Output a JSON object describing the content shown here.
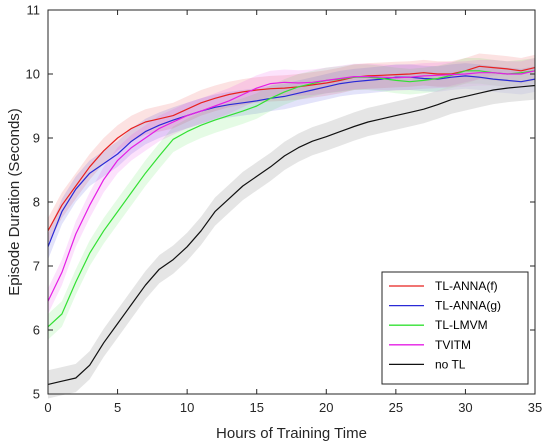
{
  "chart_data": {
    "type": "line",
    "xlabel": "Hours of Training Time",
    "ylabel": "Episode Duration (Seconds)",
    "xlim": [
      0,
      35
    ],
    "ylim": [
      5,
      11
    ],
    "xticks": [
      0,
      5,
      10,
      15,
      20,
      25,
      30,
      35
    ],
    "yticks": [
      5,
      6,
      7,
      8,
      9,
      10,
      11
    ],
    "grid": false,
    "legend_position": "bottom-right",
    "x": [
      0,
      1,
      2,
      3,
      4,
      5,
      6,
      7,
      8,
      9,
      10,
      11,
      12,
      13,
      14,
      15,
      16,
      17,
      18,
      19,
      20,
      21,
      22,
      23,
      24,
      25,
      26,
      27,
      28,
      29,
      30,
      31,
      32,
      33,
      34,
      35
    ],
    "series": [
      {
        "name": "TL-ANNA(f)",
        "color": "#e8211f",
        "band": 0.2,
        "values": [
          7.55,
          7.95,
          8.25,
          8.55,
          8.8,
          9.0,
          9.15,
          9.25,
          9.3,
          9.35,
          9.45,
          9.55,
          9.62,
          9.68,
          9.72,
          9.75,
          9.77,
          9.78,
          9.8,
          9.83,
          9.86,
          9.9,
          9.95,
          9.97,
          9.98,
          9.99,
          10.0,
          10.02,
          10.0,
          10.0,
          10.05,
          10.12,
          10.1,
          10.08,
          10.05,
          10.1
        ]
      },
      {
        "name": "TL-ANNA(g)",
        "color": "#2a2ad6",
        "band": 0.2,
        "values": [
          7.3,
          7.85,
          8.2,
          8.45,
          8.6,
          8.75,
          8.95,
          9.1,
          9.2,
          9.28,
          9.35,
          9.42,
          9.48,
          9.52,
          9.55,
          9.58,
          9.62,
          9.65,
          9.7,
          9.75,
          9.8,
          9.85,
          9.88,
          9.9,
          9.92,
          9.95,
          9.95,
          9.93,
          9.92,
          9.95,
          9.97,
          9.95,
          9.92,
          9.9,
          9.88,
          9.92
        ]
      },
      {
        "name": "TL-LMVM",
        "color": "#33e033",
        "band": 0.2,
        "values": [
          6.05,
          6.25,
          6.75,
          7.2,
          7.55,
          7.85,
          8.15,
          8.45,
          8.72,
          8.98,
          9.1,
          9.2,
          9.28,
          9.35,
          9.42,
          9.5,
          9.62,
          9.72,
          9.8,
          9.85,
          9.9,
          9.92,
          9.95,
          9.95,
          9.93,
          9.9,
          9.88,
          9.9,
          9.93,
          9.98,
          10.05,
          10.05,
          10.02,
          10.0,
          10.02,
          10.05
        ]
      },
      {
        "name": "TVITM",
        "color": "#e51ee5",
        "band": 0.2,
        "values": [
          6.45,
          6.9,
          7.5,
          7.95,
          8.35,
          8.65,
          8.85,
          9.0,
          9.15,
          9.25,
          9.35,
          9.42,
          9.5,
          9.58,
          9.68,
          9.78,
          9.85,
          9.87,
          9.86,
          9.87,
          9.9,
          9.93,
          9.96,
          9.96,
          9.95,
          9.94,
          9.95,
          9.97,
          9.98,
          9.99,
          10.0,
          10.02,
          10.02,
          10.0,
          10.0,
          10.05
        ]
      },
      {
        "name": "no TL",
        "color": "#111111",
        "band": 0.22,
        "values": [
          5.15,
          5.2,
          5.25,
          5.45,
          5.8,
          6.1,
          6.4,
          6.7,
          6.95,
          7.1,
          7.3,
          7.55,
          7.85,
          8.05,
          8.25,
          8.4,
          8.55,
          8.72,
          8.85,
          8.95,
          9.02,
          9.1,
          9.18,
          9.25,
          9.3,
          9.35,
          9.4,
          9.45,
          9.52,
          9.6,
          9.65,
          9.7,
          9.75,
          9.78,
          9.8,
          9.82
        ]
      }
    ]
  }
}
